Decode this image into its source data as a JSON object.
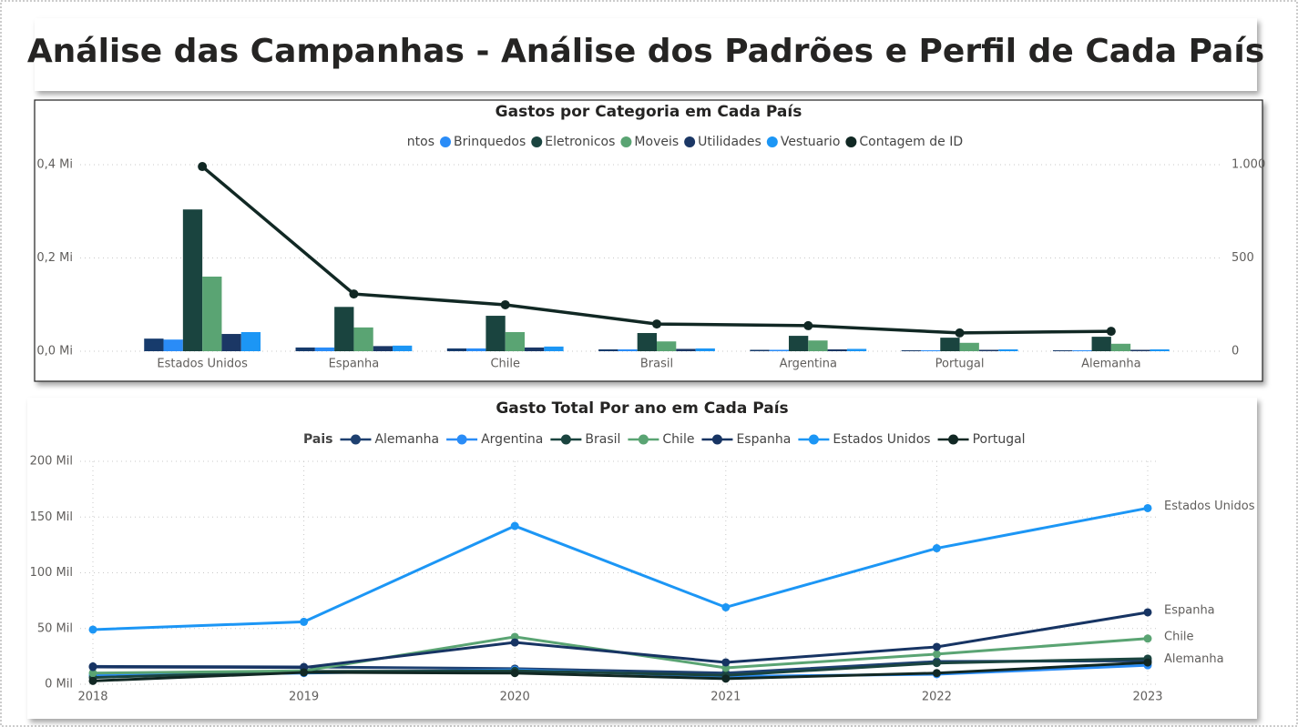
{
  "header": {
    "title": "Análise das Campanhas - Análise dos Padrões e Perfil de Cada País"
  },
  "chart_data": [
    {
      "type": "bar",
      "title": "Gastos por Categoria em Cada País",
      "categories": [
        "Estados Unidos",
        "Espanha",
        "Chile",
        "Brasil",
        "Argentina",
        "Portugal",
        "Alemanha"
      ],
      "series": [
        {
          "name": "Alimentos",
          "color": "#173b6c",
          "values": [
            0.027,
            0.008,
            0.006,
            0.004,
            0.003,
            0.002,
            0.002
          ]
        },
        {
          "name": "Brinquedos",
          "color": "#2a8cf7",
          "values": [
            0.025,
            0.008,
            0.006,
            0.004,
            0.003,
            0.002,
            0.002
          ]
        },
        {
          "name": "Eletronicos",
          "color": "#1a443f",
          "values": [
            0.304,
            0.095,
            0.076,
            0.039,
            0.033,
            0.029,
            0.031
          ]
        },
        {
          "name": "Moveis",
          "color": "#5aa473",
          "values": [
            0.16,
            0.051,
            0.041,
            0.021,
            0.023,
            0.018,
            0.016
          ]
        },
        {
          "name": "Utilidades",
          "color": "#1b3765",
          "values": [
            0.037,
            0.011,
            0.008,
            0.005,
            0.004,
            0.003,
            0.003
          ]
        },
        {
          "name": "Vestuario",
          "color": "#1c96f5",
          "values": [
            0.041,
            0.012,
            0.01,
            0.006,
            0.005,
            0.004,
            0.004
          ]
        },
        {
          "name": "Contagem de ID",
          "color": "#112824",
          "type": "line",
          "axis": "y2",
          "values": [
            990,
            307,
            249,
            146,
            137,
            98,
            107
          ]
        }
      ],
      "ylim": [
        0,
        0.4
      ],
      "yticks": [
        {
          "value": 0,
          "label": "0,0 Mi"
        },
        {
          "value": 0.2,
          "label": "0,2 Mi"
        },
        {
          "value": 0.4,
          "label": "0,4 Mi"
        }
      ],
      "y2lim": [
        0,
        1000
      ],
      "y2ticks": [
        0,
        500,
        {
          "value": 1000,
          "label": "1.000"
        }
      ],
      "grid": true
    },
    {
      "type": "line",
      "title": "Gasto Total Por ano em Cada País",
      "legend_title": "Pais",
      "categories": [
        "2018",
        "2019",
        "2020",
        "2021",
        "2022",
        "2023"
      ],
      "series": [
        {
          "name": "Alemanha",
          "color": "#1e4070",
          "end_label": true,
          "values": [
            16,
            15.5,
            14,
            10,
            20.4,
            21
          ]
        },
        {
          "name": "Argentina",
          "color": "#2a8cf7",
          "values": [
            8,
            10,
            13,
            7,
            9,
            17
          ]
        },
        {
          "name": "Brasil",
          "color": "#1a443f",
          "values": [
            6,
            11.5,
            12,
            8,
            19,
            23
          ]
        },
        {
          "name": "Chile",
          "color": "#5aa473",
          "end_label": true,
          "values": [
            10,
            12,
            42.5,
            14.7,
            27,
            41
          ]
        },
        {
          "name": "Espanha",
          "color": "#173463",
          "end_label": true,
          "values": [
            15.5,
            15,
            37.5,
            19.6,
            33.5,
            64.5
          ]
        },
        {
          "name": "Estados Unidos",
          "color": "#1c96f5",
          "end_label": true,
          "values": [
            49,
            56,
            142,
            69,
            122,
            158
          ]
        },
        {
          "name": "Portugal",
          "color": "#112824",
          "values": [
            3,
            10.6,
            10,
            5,
            10,
            19.5
          ]
        }
      ],
      "ylim": [
        0,
        200
      ],
      "yticks": [
        {
          "value": 0,
          "label": "0 Mil"
        },
        {
          "value": 50,
          "label": "50 Mil"
        },
        {
          "value": 100,
          "label": "100 Mil"
        },
        {
          "value": 150,
          "label": "150 Mil"
        },
        {
          "value": 200,
          "label": "200 Mil"
        }
      ],
      "grid": true
    }
  ]
}
